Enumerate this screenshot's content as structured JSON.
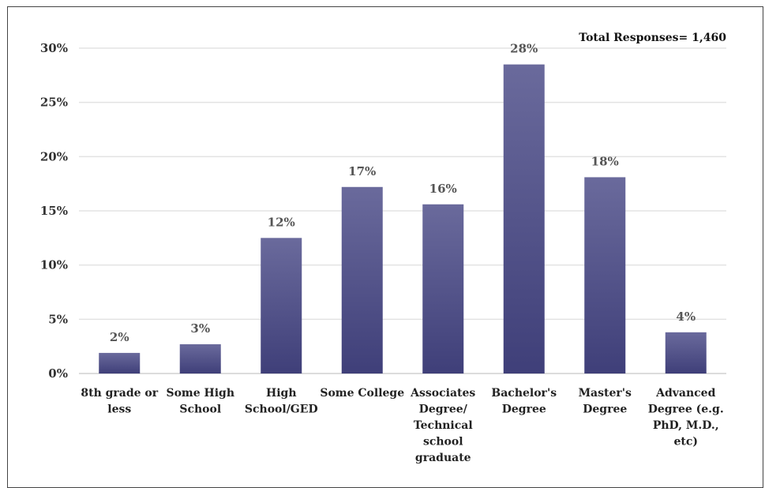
{
  "chart_data": {
    "type": "bar",
    "title": "",
    "xlabel": "",
    "ylabel": "",
    "annotation": "Total Responses= 1,460",
    "categories": [
      [
        "8th grade or",
        "less"
      ],
      [
        "Some High",
        "School"
      ],
      [
        "High",
        "School/GED"
      ],
      [
        "Some College"
      ],
      [
        "Associates",
        "Degree/",
        "Technical",
        "school",
        "graduate"
      ],
      [
        "Bachelor's",
        "Degree"
      ],
      [
        "Master's",
        "Degree"
      ],
      [
        "Advanced",
        "Degree (e.g.",
        "PhD, M.D.,",
        "etc)"
      ]
    ],
    "values": [
      1.9,
      2.7,
      12.5,
      17.2,
      15.6,
      28.5,
      18.1,
      3.8
    ],
    "data_labels": [
      "2%",
      "3%",
      "12%",
      "17%",
      "16%",
      "28%",
      "18%",
      "4%"
    ],
    "ylim": [
      0,
      30
    ],
    "yticks": [
      0,
      5,
      10,
      15,
      20,
      25,
      30
    ],
    "ytick_labels": [
      "0%",
      "5%",
      "10%",
      "15%",
      "20%",
      "25%",
      "30%"
    ],
    "grid": true,
    "colors": {
      "bar_top": "#6a6a9c",
      "bar_bottom": "#3f3f79",
      "grid": "#e3e3e3",
      "axis": "#d0d0d0"
    }
  }
}
